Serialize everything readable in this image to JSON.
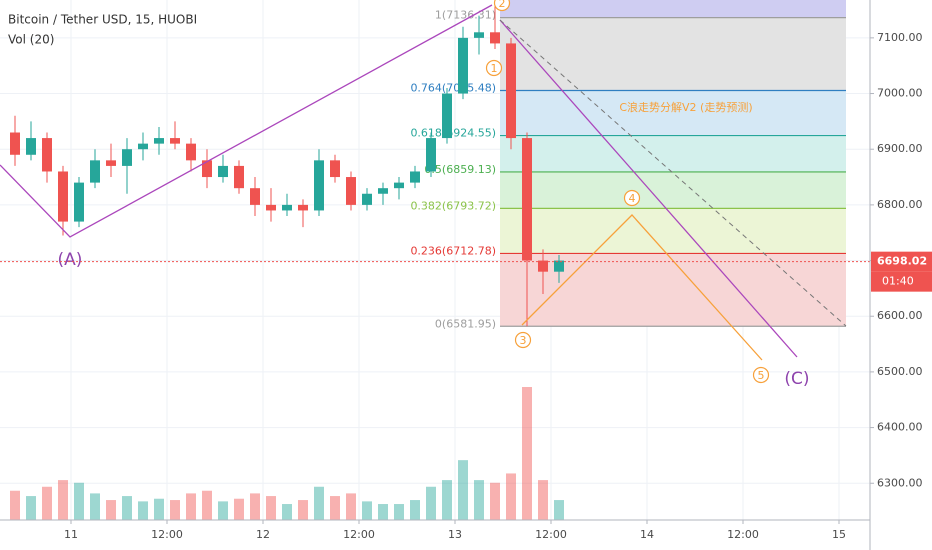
{
  "chart_data": {
    "type": "candlestick",
    "title": "Bitcoin / Tether USD, 15, HUOBI",
    "volume_title": "Vol (20)",
    "xlim": [
      15.125,
      123.875
    ],
    "xticks": [
      {
        "value": 24,
        "label": "11"
      },
      {
        "value": 36,
        "label": "12:00"
      },
      {
        "value": 48,
        "label": "12"
      },
      {
        "value": 60,
        "label": "12:00"
      },
      {
        "value": 72,
        "label": "13"
      },
      {
        "value": 84,
        "label": "12:00"
      },
      {
        "value": 96,
        "label": "14"
      },
      {
        "value": 108,
        "label": "12:00"
      },
      {
        "value": 120,
        "label": "15"
      }
    ],
    "ylim": [
      6234,
      7168
    ],
    "yticks": [
      {
        "value": 6300,
        "label": "6300.00"
      },
      {
        "value": 6400,
        "label": "6400.00"
      },
      {
        "value": 6500,
        "label": "6500.00"
      },
      {
        "value": 6600,
        "label": "6600.00"
      },
      {
        "value": 6700,
        "label": "6700.00"
      },
      {
        "value": 6800,
        "label": "6800.00"
      },
      {
        "value": 6900,
        "label": "6900.00"
      },
      {
        "value": 7000,
        "label": "7000.00"
      },
      {
        "value": 7100,
        "label": "7100.00"
      }
    ],
    "grid": true,
    "up_color": "#26a69a",
    "down_color": "#ef5350",
    "x": [
      17,
      19,
      21,
      23,
      25,
      27,
      29,
      31,
      33,
      35,
      37,
      39,
      41,
      43,
      45,
      47,
      49,
      51,
      53,
      55,
      57,
      59,
      61,
      63,
      65,
      67,
      69,
      71,
      73,
      75,
      77,
      79,
      81,
      83,
      85
    ],
    "open": [
      6930,
      6890,
      6920,
      6860,
      6770,
      6840,
      6880,
      6870,
      6900,
      6910,
      6920,
      6910,
      6880,
      6850,
      6870,
      6830,
      6800,
      6790,
      6800,
      6790,
      6880,
      6850,
      6800,
      6820,
      6830,
      6840,
      6860,
      6920,
      7000,
      7100,
      7110,
      7090,
      6920,
      6700,
      6680
    ],
    "high": [
      6960,
      6950,
      6930,
      6870,
      6850,
      6900,
      6910,
      6920,
      6930,
      6940,
      6950,
      6920,
      6900,
      6890,
      6880,
      6850,
      6830,
      6820,
      6810,
      6900,
      6890,
      6860,
      6830,
      6840,
      6850,
      6870,
      6930,
      7010,
      7120,
      7140,
      7160,
      7100,
      6930,
      6720,
      6710
    ],
    "low": [
      6870,
      6880,
      6840,
      6745,
      6760,
      6830,
      6850,
      6820,
      6880,
      6890,
      6900,
      6860,
      6830,
      6840,
      6820,
      6780,
      6770,
      6780,
      6760,
      6780,
      6840,
      6790,
      6790,
      6800,
      6810,
      6830,
      6850,
      6910,
      6990,
      7070,
      7080,
      6900,
      6582,
      6640,
      6660
    ],
    "close": [
      6890,
      6920,
      6860,
      6770,
      6840,
      6880,
      6870,
      6900,
      6910,
      6920,
      6910,
      6880,
      6850,
      6870,
      6830,
      6800,
      6790,
      6800,
      6790,
      6880,
      6850,
      6800,
      6820,
      6830,
      6840,
      6860,
      6920,
      7000,
      7100,
      7110,
      7090,
      6920,
      6700,
      6680,
      6700
    ],
    "volume_lim": [
      0,
      100
    ],
    "volume": [
      22,
      18,
      25,
      30,
      28,
      20,
      15,
      18,
      14,
      16,
      15,
      20,
      22,
      14,
      16,
      20,
      18,
      12,
      15,
      25,
      18,
      20,
      14,
      12,
      12,
      15,
      25,
      30,
      45,
      30,
      28,
      35,
      100,
      30,
      15
    ],
    "last_price": 6698.02,
    "countdown": "01:40",
    "fib_levels": [
      {
        "value": 7136.31,
        "label": "1(7136.31)",
        "line": "#9e9e9e",
        "fill": "#e3e3e3"
      },
      {
        "value": 7005.48,
        "label": "0.764(7005.48)",
        "line": "#2f7fc1",
        "fill": "#d5e8f5"
      },
      {
        "value": 6924.55,
        "label": "0.618(6924.55)",
        "line": "#26a69a",
        "fill": "#d3f0ec"
      },
      {
        "value": 6859.13,
        "label": "0.5(6859.13)",
        "line": "#4caf50",
        "fill": "#d9f2d9"
      },
      {
        "value": 6793.72,
        "label": "0.382(6793.72)",
        "line": "#8bc34a",
        "fill": "#ecf5d6"
      },
      {
        "value": 6712.78,
        "label": "0.236(6712.78)",
        "line": "#e53935",
        "fill": "#f7d6d6"
      },
      {
        "value": 6581.95,
        "label": "0(6581.95)",
        "line": "#9e9e9e",
        "fill": "#f7d6d6"
      }
    ],
    "annotation": "C浪走势分解V2 (走势预测)",
    "wave_labels": [
      "1",
      "2",
      "3",
      "4",
      "5"
    ],
    "corrective_labels": [
      "(A)",
      "(C)"
    ]
  }
}
